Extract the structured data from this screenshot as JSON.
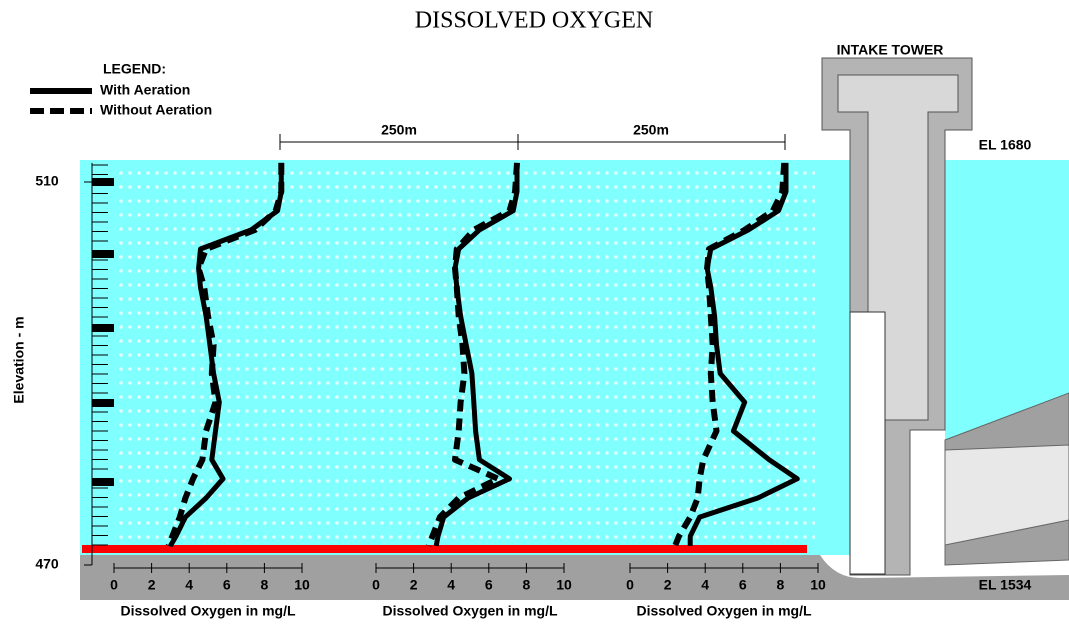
{
  "title": "DISSOLVED OXYGEN",
  "legend_title": "LEGEND:",
  "elevation_axis": {
    "label": "Elevation - m",
    "ylim": [
      470,
      512
    ],
    "yticks": [
      470,
      510
    ]
  },
  "annotations": {
    "tower": "INTAKE TOWER",
    "el_top": "EL 1680",
    "el_bottom": "EL 1534",
    "spacing": [
      "250m",
      "250m"
    ]
  },
  "chart_data": [
    {
      "type": "line",
      "x_label": "Dissolved Oxygen in mg/L",
      "xlim": [
        0,
        10
      ],
      "xticks": [
        0,
        2,
        4,
        6,
        8,
        10
      ],
      "elevations": [
        512,
        509,
        507,
        505,
        503,
        501,
        499,
        496,
        493,
        490,
        487,
        484,
        481,
        479,
        477,
        475,
        473,
        472
      ],
      "series": [
        {
          "name": "With Aeration",
          "color": "#000000",
          "dashed": false,
          "values": [
            8.9,
            8.9,
            8.7,
            7.3,
            4.6,
            4.5,
            4.6,
            4.9,
            5.1,
            5.3,
            5.6,
            5.4,
            5.2,
            5.8,
            4.9,
            3.8,
            3.3,
            3.0
          ]
        },
        {
          "name": "Without Aeration",
          "color": "#000000",
          "dashed": true,
          "values": [
            8.9,
            8.9,
            8.6,
            7.5,
            4.9,
            4.5,
            4.8,
            5.0,
            5.3,
            5.2,
            5.4,
            4.9,
            4.7,
            4.2,
            3.8,
            3.5,
            3.1,
            2.9
          ]
        }
      ]
    },
    {
      "type": "line",
      "x_label": "Dissolved Oxygen in mg/L",
      "xlim": [
        0,
        10
      ],
      "xticks": [
        0,
        2,
        4,
        6,
        8,
        10
      ],
      "elevations": [
        512,
        509,
        507,
        505,
        503,
        501,
        499,
        496,
        493,
        490,
        487,
        484,
        481,
        479,
        477,
        475,
        473,
        472
      ],
      "series": [
        {
          "name": "With Aeration",
          "color": "#000000",
          "dashed": false,
          "values": [
            7.5,
            7.5,
            7.3,
            5.5,
            4.4,
            4.2,
            4.3,
            4.5,
            4.8,
            5.1,
            5.2,
            5.3,
            5.5,
            7.1,
            4.9,
            3.6,
            3.3,
            3.2
          ]
        },
        {
          "name": "Without Aeration",
          "color": "#000000",
          "dashed": true,
          "values": [
            7.5,
            7.4,
            7.1,
            5.2,
            4.3,
            4.2,
            4.3,
            4.4,
            4.6,
            4.7,
            4.5,
            4.4,
            4.2,
            6.5,
            4.4,
            3.4,
            3.0,
            2.8
          ]
        }
      ]
    },
    {
      "type": "line",
      "x_label": "Dissolved Oxygen in mg/L",
      "xlim": [
        0,
        10
      ],
      "xticks": [
        0,
        2,
        4,
        6,
        8,
        10
      ],
      "elevations": [
        512,
        509,
        507,
        505,
        503,
        501,
        499,
        496,
        493,
        490,
        487,
        484,
        481,
        479,
        477,
        475,
        473,
        472
      ],
      "series": [
        {
          "name": "With Aeration",
          "color": "#000000",
          "dashed": false,
          "values": [
            8.3,
            8.3,
            7.9,
            6.3,
            4.3,
            4.1,
            4.3,
            4.5,
            4.6,
            4.8,
            6.1,
            5.5,
            7.4,
            8.9,
            6.8,
            3.7,
            3.2,
            3.2
          ]
        },
        {
          "name": "Without Aeration",
          "color": "#000000",
          "dashed": true,
          "values": [
            8.2,
            8.1,
            7.6,
            6.1,
            4.2,
            4.1,
            4.2,
            4.3,
            4.4,
            4.3,
            4.4,
            4.6,
            3.9,
            3.7,
            3.6,
            3.2,
            2.6,
            2.4
          ]
        }
      ]
    }
  ]
}
